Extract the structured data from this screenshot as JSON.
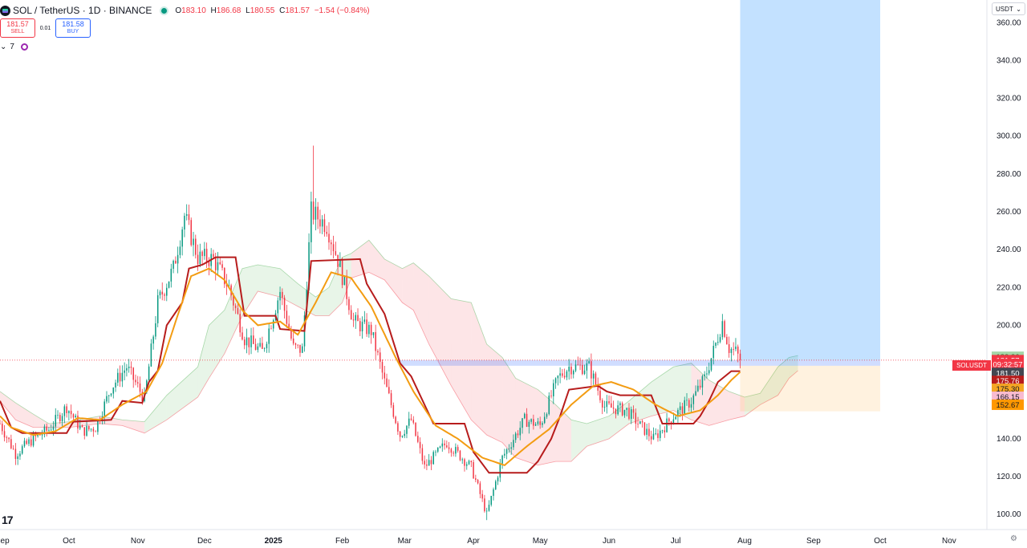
{
  "header": {
    "symbol": "SOL / TetherUS · 1D · BINANCE",
    "o_label": "O",
    "o_value": "183.10",
    "h_label": "H",
    "h_value": "186.68",
    "l_label": "L",
    "l_value": "180.55",
    "c_label": "C",
    "c_value": "181.57",
    "change": "−1.54 (−0.84%)"
  },
  "trade": {
    "sell_price": "181.57",
    "sell_label": "SELL",
    "spread": "0.01",
    "buy_price": "181.58",
    "buy_label": "BUY"
  },
  "indicators": {
    "chevron": "⌄",
    "count": "7"
  },
  "unit": {
    "label": "USDT",
    "chevron": "⌄"
  },
  "watermark": "17",
  "symbol_tag": "SOLUSDT",
  "settings_icon": "gear-icon",
  "chart_data": {
    "type": "candlestick",
    "ylim": [
      92,
      372
    ],
    "y_ticks": [
      100,
      120,
      140,
      160,
      180,
      200,
      220,
      240,
      260,
      280,
      300,
      320,
      340,
      360
    ],
    "y_tick_labels": [
      "100.00",
      "120.00",
      "140.00",
      "160.00",
      "180.00",
      "200.00",
      "220.00",
      "240.00",
      "260.00",
      "280.00",
      "300.00",
      "320.00",
      "340.00",
      "360.00"
    ],
    "x_months": [
      {
        "label": "Sep",
        "date": "2024-09-01"
      },
      {
        "label": "Oct",
        "date": "2024-10-01"
      },
      {
        "label": "Nov",
        "date": "2024-11-01"
      },
      {
        "label": "Dec",
        "date": "2024-12-01"
      },
      {
        "label": "2025",
        "date": "2025-01-01"
      },
      {
        "label": "Feb",
        "date": "2025-02-01"
      },
      {
        "label": "Mar",
        "date": "2025-03-01"
      },
      {
        "label": "Apr",
        "date": "2025-04-01"
      },
      {
        "label": "May",
        "date": "2025-05-01"
      },
      {
        "label": "Jun",
        "date": "2025-06-01"
      },
      {
        "label": "Jul",
        "date": "2025-07-01"
      },
      {
        "label": "Aug",
        "date": "2025-08-01"
      },
      {
        "label": "Sep",
        "date": "2025-09-01"
      },
      {
        "label": "Oct",
        "date": "2025-10-01"
      },
      {
        "label": "Nov",
        "date": "2025-11-01"
      }
    ],
    "x_start": "2024-08-31",
    "x_end": "2025-11-18",
    "price_anchors": [
      [
        "2024-08-31",
        148
      ],
      [
        "2024-09-07",
        132
      ],
      [
        "2024-09-15",
        140
      ],
      [
        "2024-09-22",
        145
      ],
      [
        "2024-09-30",
        157
      ],
      [
        "2024-10-07",
        144
      ],
      [
        "2024-10-13",
        146
      ],
      [
        "2024-10-20",
        167
      ],
      [
        "2024-10-27",
        178
      ],
      [
        "2024-11-04",
        161
      ],
      [
        "2024-11-10",
        212
      ],
      [
        "2024-11-17",
        230
      ],
      [
        "2024-11-22",
        258
      ],
      [
        "2024-11-28",
        236
      ],
      [
        "2024-12-05",
        235
      ],
      [
        "2024-12-12",
        220
      ],
      [
        "2024-12-19",
        193
      ],
      [
        "2024-12-27",
        186
      ],
      [
        "2025-01-04",
        218
      ],
      [
        "2025-01-10",
        188
      ],
      [
        "2025-01-14",
        187
      ],
      [
        "2025-01-18",
        260
      ],
      [
        "2025-01-25",
        253
      ],
      [
        "2025-01-31",
        231
      ],
      [
        "2025-02-06",
        202
      ],
      [
        "2025-02-14",
        197
      ],
      [
        "2025-02-20",
        170
      ],
      [
        "2025-02-27",
        142
      ],
      [
        "2025-03-04",
        150
      ],
      [
        "2025-03-10",
        125
      ],
      [
        "2025-03-20",
        138
      ],
      [
        "2025-03-31",
        125
      ],
      [
        "2025-04-07",
        100
      ],
      [
        "2025-04-14",
        130
      ],
      [
        "2025-04-24",
        150
      ],
      [
        "2025-05-01",
        147
      ],
      [
        "2025-05-09",
        172
      ],
      [
        "2025-05-14",
        178
      ],
      [
        "2025-05-23",
        178
      ],
      [
        "2025-05-30",
        157
      ],
      [
        "2025-06-09",
        155
      ],
      [
        "2025-06-15",
        147
      ],
      [
        "2025-06-21",
        140
      ],
      [
        "2025-06-30",
        152
      ],
      [
        "2025-07-08",
        160
      ],
      [
        "2025-07-14",
        172
      ],
      [
        "2025-07-19",
        190
      ],
      [
        "2025-07-22",
        202
      ],
      [
        "2025-07-25",
        188
      ],
      [
        "2025-07-28",
        186
      ],
      [
        "2025-07-30",
        181.57
      ]
    ],
    "spike_highs": [
      [
        "2025-01-19",
        295
      ],
      [
        "2024-11-23",
        264
      ],
      [
        "2025-07-22",
        206
      ]
    ],
    "spike_lows": [
      [
        "2025-04-07",
        97
      ]
    ],
    "cloud": [
      [
        "2024-08-31",
        165,
        160
      ],
      [
        "2024-09-07",
        159,
        150
      ],
      [
        "2024-09-15",
        153,
        146
      ],
      [
        "2024-09-22",
        148,
        146
      ],
      [
        "2024-10-01",
        149,
        146
      ],
      [
        "2024-10-15",
        152,
        148
      ],
      [
        "2024-10-25",
        150,
        147
      ],
      [
        "2024-11-04",
        149,
        143
      ],
      [
        "2024-11-14",
        163,
        150
      ],
      [
        "2024-11-28",
        178,
        162
      ],
      [
        "2024-12-03",
        200,
        172
      ],
      [
        "2024-12-10",
        208,
        185
      ],
      [
        "2024-12-18",
        230,
        205
      ],
      [
        "2024-12-25",
        232,
        218
      ],
      [
        "2025-01-04",
        230,
        215
      ],
      [
        "2025-01-12",
        222,
        210
      ],
      [
        "2025-01-20",
        215,
        205
      ],
      [
        "2025-01-26",
        220,
        205
      ],
      [
        "2025-02-01",
        236,
        212
      ],
      [
        "2025-02-05",
        238,
        225
      ],
      [
        "2025-02-13",
        245,
        228
      ],
      [
        "2025-02-20",
        235,
        224
      ],
      [
        "2025-02-28",
        230,
        212
      ],
      [
        "2025-03-05",
        233,
        208
      ],
      [
        "2025-03-12",
        226,
        190
      ],
      [
        "2025-03-22",
        214,
        168
      ],
      [
        "2025-03-31",
        212,
        150
      ],
      [
        "2025-04-07",
        190,
        142
      ],
      [
        "2025-04-14",
        183,
        138
      ],
      [
        "2025-04-20",
        172,
        130
      ],
      [
        "2025-04-30",
        166,
        126
      ],
      [
        "2025-05-08",
        158,
        128
      ],
      [
        "2025-05-15",
        150,
        128
      ],
      [
        "2025-05-22",
        148,
        136
      ],
      [
        "2025-06-01",
        152,
        140
      ],
      [
        "2025-06-10",
        160,
        148
      ],
      [
        "2025-06-20",
        170,
        152
      ],
      [
        "2025-06-30",
        178,
        155
      ],
      [
        "2025-07-08",
        180,
        150
      ],
      [
        "2025-07-16",
        171,
        147
      ],
      [
        "2025-07-25",
        165,
        150
      ],
      [
        "2025-08-01",
        162,
        152
      ],
      [
        "2025-08-08",
        164,
        158
      ],
      [
        "2025-08-16",
        178,
        163
      ],
      [
        "2025-08-21",
        183,
        172
      ],
      [
        "2025-08-25",
        184,
        176
      ]
    ],
    "kijun": [
      [
        "2024-08-31",
        160
      ],
      [
        "2024-09-05",
        146
      ],
      [
        "2024-09-10",
        143
      ],
      [
        "2024-09-30",
        143
      ],
      [
        "2024-10-03",
        149
      ],
      [
        "2024-10-20",
        150
      ],
      [
        "2024-10-25",
        160
      ],
      [
        "2024-11-03",
        159
      ],
      [
        "2024-11-06",
        170
      ],
      [
        "2024-11-10",
        176
      ],
      [
        "2024-11-14",
        200
      ],
      [
        "2024-11-21",
        212
      ],
      [
        "2024-11-24",
        230
      ],
      [
        "2024-11-30",
        232
      ],
      [
        "2024-12-06",
        236
      ],
      [
        "2024-12-15",
        236
      ],
      [
        "2024-12-19",
        205
      ],
      [
        "2025-01-02",
        205
      ],
      [
        "2025-01-04",
        198
      ],
      [
        "2025-01-15",
        197
      ],
      [
        "2025-01-18",
        234
      ],
      [
        "2025-02-09",
        235
      ],
      [
        "2025-02-12",
        222
      ],
      [
        "2025-02-20",
        206
      ],
      [
        "2025-02-27",
        180
      ],
      [
        "2025-03-04",
        173
      ],
      [
        "2025-03-14",
        148
      ],
      [
        "2025-03-28",
        148
      ],
      [
        "2025-04-01",
        133
      ],
      [
        "2025-04-08",
        122
      ],
      [
        "2025-04-25",
        122
      ],
      [
        "2025-04-30",
        128
      ],
      [
        "2025-05-06",
        140
      ],
      [
        "2025-05-10",
        152
      ],
      [
        "2025-05-14",
        166
      ],
      [
        "2025-05-27",
        168
      ],
      [
        "2025-05-31",
        165
      ],
      [
        "2025-06-06",
        163
      ],
      [
        "2025-06-20",
        163
      ],
      [
        "2025-06-25",
        148
      ],
      [
        "2025-07-09",
        148
      ],
      [
        "2025-07-12",
        152
      ],
      [
        "2025-07-16",
        160
      ],
      [
        "2025-07-20",
        170
      ],
      [
        "2025-07-26",
        175.76
      ],
      [
        "2025-07-30",
        175.76
      ]
    ],
    "tenkan": [
      [
        "2024-08-31",
        152
      ],
      [
        "2024-09-05",
        146
      ],
      [
        "2024-09-15",
        142
      ],
      [
        "2024-09-25",
        144
      ],
      [
        "2024-10-05",
        151
      ],
      [
        "2024-10-15",
        150
      ],
      [
        "2024-10-25",
        158
      ],
      [
        "2024-11-05",
        165
      ],
      [
        "2024-11-12",
        180
      ],
      [
        "2024-11-18",
        202
      ],
      [
        "2024-11-25",
        226
      ],
      [
        "2024-12-03",
        230
      ],
      [
        "2024-12-10",
        224
      ],
      [
        "2024-12-18",
        208
      ],
      [
        "2024-12-25",
        200
      ],
      [
        "2025-01-04",
        202
      ],
      [
        "2025-01-12",
        195
      ],
      [
        "2025-01-20",
        212
      ],
      [
        "2025-01-27",
        228
      ],
      [
        "2025-02-05",
        225
      ],
      [
        "2025-02-14",
        210
      ],
      [
        "2025-02-25",
        183
      ],
      [
        "2025-03-05",
        165
      ],
      [
        "2025-03-15",
        147
      ],
      [
        "2025-03-25",
        140
      ],
      [
        "2025-04-05",
        130
      ],
      [
        "2025-04-15",
        126
      ],
      [
        "2025-04-25",
        136
      ],
      [
        "2025-05-05",
        145
      ],
      [
        "2025-05-15",
        158
      ],
      [
        "2025-05-25",
        168
      ],
      [
        "2025-06-02",
        170
      ],
      [
        "2025-06-12",
        166
      ],
      [
        "2025-06-22",
        158
      ],
      [
        "2025-07-02",
        152
      ],
      [
        "2025-07-12",
        155
      ],
      [
        "2025-07-20",
        163
      ],
      [
        "2025-07-26",
        171
      ],
      [
        "2025-07-30",
        175.3
      ]
    ],
    "long_position": {
      "start": "2025-07-30",
      "end": "2025-10-01",
      "entry_top": 181.57,
      "entry_bottom": 178.6,
      "target": 372,
      "stop": 154.5
    },
    "support_band": {
      "start": "2025-02-27",
      "end": "2025-10-01",
      "top": 181.57,
      "bottom": 178.6
    },
    "last_price": 181.57,
    "price_tags": [
      {
        "label": "183.36",
        "value": 183.36,
        "bg": "#a5d6a7",
        "fg": "#1b5e20"
      },
      {
        "label": "181.57",
        "value": 181.57,
        "bg": "#f23645",
        "fg": "#ffffff"
      },
      {
        "label": "09:32:57",
        "value": 179.5,
        "bg": "#f23645",
        "fg": "#ffffff"
      },
      {
        "label": "181.50",
        "value": 174.8,
        "bg": "#434651",
        "fg": "#ffffff"
      },
      {
        "label": "175.76",
        "value": 170.6,
        "bg": "#b71c1c",
        "fg": "#ffffff"
      },
      {
        "label": "175.30",
        "value": 166.4,
        "bg": "#f5a623",
        "fg": "#131722"
      },
      {
        "label": "166.15",
        "value": 162.2,
        "bg": "#f8bbd0",
        "fg": "#131722"
      },
      {
        "label": "152.67",
        "value": 158.0,
        "bg": "#ff9800",
        "fg": "#131722"
      }
    ]
  }
}
